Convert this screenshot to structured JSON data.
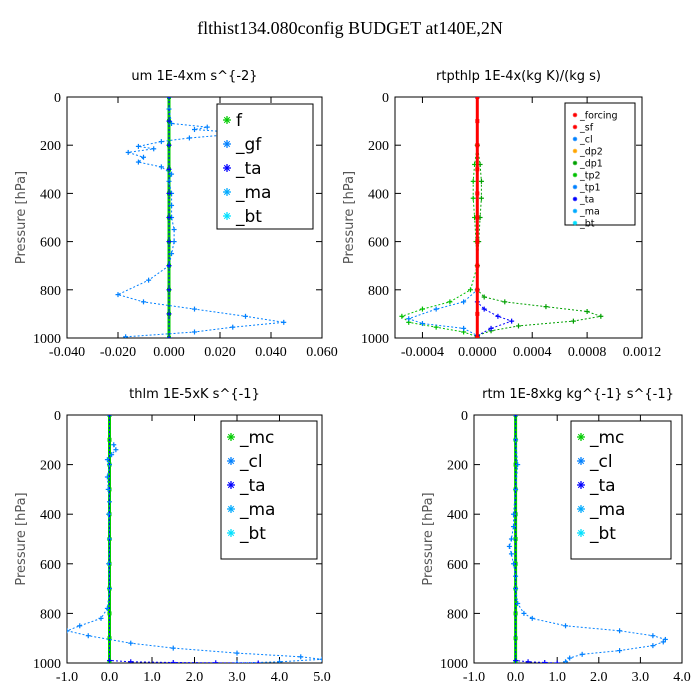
{
  "title": "flthist134.080config  BUDGET at140E,2N",
  "colors": {
    "forcing": "#ff0000",
    "sf": "#ff0000",
    "cl": "#0080ff",
    "dp2": "#ffa500",
    "dp1": "#00a000",
    "tp2": "#00c000",
    "tp1": "#0080ff",
    "ta": "#0000ff",
    "ma": "#00aaff",
    "bt": "#00e0ff",
    "mc": "#00cc00",
    "f": "#00cc00",
    "gf": "#0080ff"
  },
  "chart_data": [
    {
      "id": "um",
      "type": "line",
      "title": "um   1E-4xm s^{-2}",
      "ylabel": "Pressure [hPa]",
      "xlim": [
        -0.04,
        0.06
      ],
      "ylim": [
        1000,
        0
      ],
      "xticks": [
        "-0.040",
        "-0.020",
        "0.000",
        "0.020",
        "0.040",
        "0.060"
      ],
      "xtick_values": [
        -0.04,
        -0.02,
        0.0,
        0.02,
        0.04,
        0.06
      ],
      "yticks": [
        "0",
        "200",
        "400",
        "600",
        "800",
        "1000"
      ],
      "ytick_values": [
        0,
        200,
        400,
        600,
        800,
        1000
      ],
      "legend": [
        "f",
        "_gf",
        "_ta",
        "_ma",
        "_bt"
      ],
      "legend_colors": [
        "f",
        "gf",
        "ta",
        "ma",
        "bt"
      ],
      "series": [
        {
          "name": "f",
          "color": "f",
          "width": 3,
          "x": [
            0,
            0,
            0,
            0,
            0,
            0,
            0,
            0,
            0,
            0,
            0
          ],
          "y": [
            0,
            100,
            200,
            300,
            400,
            500,
            600,
            700,
            800,
            900,
            1000
          ]
        },
        {
          "name": "_gf",
          "color": "gf",
          "width": 1,
          "x": [
            0.0,
            0.0,
            0.001,
            0.015,
            0.01,
            0.03,
            0.008,
            -0.003,
            -0.012,
            -0.006,
            -0.016,
            -0.01,
            -0.012,
            -0.003,
            0.001,
            0.0,
            0.001,
            0.001,
            0.001,
            0.002,
            0.002,
            0.001,
            0.0,
            -0.008,
            -0.02,
            -0.01,
            0.01,
            0.03,
            0.045,
            0.025,
            0.01,
            -0.017
          ],
          "y": [
            0,
            50,
            110,
            125,
            135,
            150,
            170,
            185,
            205,
            215,
            230,
            250,
            270,
            290,
            320,
            350,
            400,
            450,
            500,
            550,
            600,
            650,
            700,
            760,
            820,
            850,
            880,
            910,
            935,
            955,
            975,
            995
          ]
        },
        {
          "name": "_ta",
          "color": "ta",
          "width": 1,
          "x": [
            0,
            0,
            0,
            0,
            0,
            0,
            0,
            0,
            0,
            0,
            0
          ],
          "y": [
            0,
            100,
            200,
            300,
            400,
            500,
            600,
            700,
            800,
            900,
            1000
          ]
        }
      ]
    },
    {
      "id": "rtpthlp",
      "type": "line",
      "title": "rtpthlp   1E-4x(kg K)/(kg s)",
      "ylabel": "Pressure [hPa]",
      "xlim": [
        -0.0006,
        0.0012
      ],
      "ylim": [
        1000,
        0
      ],
      "xticks": [
        "-0.0004",
        "0.0000",
        "0.0004",
        "0.0008",
        "0.0012"
      ],
      "xtick_values": [
        -0.0004,
        0.0,
        0.0004,
        0.0008,
        0.0012
      ],
      "yticks": [
        "0",
        "200",
        "400",
        "600",
        "800",
        "1000"
      ],
      "ytick_values": [
        0,
        200,
        400,
        600,
        800,
        1000
      ],
      "legend": [
        "_forcing",
        "_sf",
        "_cl",
        "_dp2",
        "_dp1",
        "_tp2",
        "_tp1",
        "_ta",
        "_ma",
        "_bt"
      ],
      "legend_colors": [
        "forcing",
        "sf",
        "cl",
        "dp2",
        "dp1",
        "tp2",
        "tp1",
        "ta",
        "ma",
        "bt"
      ],
      "series": [
        {
          "name": "_dp1",
          "color": "dp1",
          "width": 1,
          "x": [
            0.0,
            0.0,
            2e-05,
            3e-05,
            3e-05,
            2e-05,
            1e-05,
            0.0,
            0.0,
            5e-05,
            0.0002,
            0.0005,
            0.0008,
            0.0009,
            0.0007,
            0.0003,
            0.0001,
            0.0
          ],
          "y": [
            0,
            200,
            280,
            350,
            420,
            500,
            600,
            700,
            800,
            830,
            850,
            870,
            890,
            910,
            930,
            950,
            970,
            990
          ]
        },
        {
          "name": "_tp2",
          "color": "tp2",
          "width": 1,
          "x": [
            0.0,
            0.0,
            -2e-05,
            -3e-05,
            -3e-05,
            -2e-05,
            -1e-05,
            0.0,
            -5e-05,
            -0.0002,
            -0.0004,
            -0.00055,
            -0.0005,
            -0.0003,
            -0.0001,
            0.0
          ],
          "y": [
            0,
            200,
            280,
            350,
            420,
            500,
            600,
            700,
            800,
            850,
            880,
            910,
            935,
            955,
            975,
            995
          ]
        },
        {
          "name": "_tp1",
          "color": "tp1",
          "width": 1,
          "x": [
            0.0,
            0.0,
            -0.0001,
            -0.0003,
            -0.0005,
            -0.0004,
            -0.0001,
            0.0
          ],
          "y": [
            0,
            800,
            850,
            880,
            920,
            940,
            960,
            990
          ]
        },
        {
          "name": "_ta",
          "color": "ta",
          "width": 1,
          "x": [
            0.0,
            0.0,
            5e-05,
            0.00015,
            0.00025,
            0.0001,
            0.0
          ],
          "y": [
            0,
            850,
            880,
            910,
            930,
            960,
            990
          ]
        },
        {
          "name": "_forcing",
          "color": "forcing",
          "width": 3,
          "x": [
            0,
            0,
            0,
            0,
            0,
            0,
            0,
            0,
            0,
            0,
            0
          ],
          "y": [
            0,
            100,
            200,
            300,
            400,
            500,
            600,
            700,
            800,
            900,
            1000
          ]
        }
      ]
    },
    {
      "id": "thlm",
      "type": "line",
      "title": "thlm   1E-5xK s^{-1}",
      "ylabel": "Pressure [hPa]",
      "xlim": [
        -1.0,
        5.0
      ],
      "ylim": [
        1000,
        0
      ],
      "xticks": [
        "-1.0",
        "0.0",
        "1.0",
        "2.0",
        "3.0",
        "4.0",
        "5.0"
      ],
      "xtick_values": [
        -1.0,
        0.0,
        1.0,
        2.0,
        3.0,
        4.0,
        5.0
      ],
      "yticks": [
        "0",
        "200",
        "400",
        "600",
        "800",
        "1000"
      ],
      "ytick_values": [
        0,
        200,
        400,
        600,
        800,
        1000
      ],
      "legend": [
        "_mc",
        "_cl",
        "_ta",
        "_ma",
        "_bt"
      ],
      "legend_colors": [
        "mc",
        "cl",
        "ta",
        "ma",
        "bt"
      ],
      "series": [
        {
          "name": "_mc",
          "color": "mc",
          "width": 3,
          "x": [
            0,
            0,
            0,
            0,
            0,
            0,
            0,
            0,
            0,
            0,
            0
          ],
          "y": [
            0,
            100,
            200,
            300,
            400,
            500,
            600,
            700,
            800,
            900,
            1000
          ]
        },
        {
          "name": "_cl",
          "color": "cl",
          "width": 1,
          "x": [
            0.1,
            0.15,
            0.05,
            -0.05,
            0.0,
            -0.05,
            -0.03,
            0.0,
            -0.02,
            0.0,
            -0.02,
            0.0,
            -0.05,
            -0.2,
            -0.7,
            -1.0,
            -0.5,
            0.5,
            1.5,
            3.0,
            4.5,
            5.0,
            4.0,
            3.0
          ],
          "y": [
            120,
            140,
            160,
            180,
            200,
            250,
            300,
            350,
            400,
            500,
            600,
            700,
            780,
            820,
            850,
            870,
            890,
            920,
            940,
            960,
            975,
            985,
            995,
            1000
          ]
        },
        {
          "name": "_ta",
          "color": "ta",
          "width": 1,
          "x": [
            0,
            0,
            0.5,
            1.5,
            2.5,
            3.5
          ],
          "y": [
            0,
            990,
            995,
            998,
            999,
            1000
          ]
        }
      ]
    },
    {
      "id": "rtm",
      "type": "line",
      "title": "rtm   1E-8xkg kg^{-1} s^{-1}",
      "ylabel": "Pressure [hPa]",
      "xlim": [
        -1.0,
        4.0
      ],
      "ylim": [
        1000,
        0
      ],
      "xticks": [
        "-1.0",
        "0.0",
        "1.0",
        "2.0",
        "3.0",
        "4.0"
      ],
      "xtick_values": [
        -1.0,
        0.0,
        1.0,
        2.0,
        3.0,
        4.0
      ],
      "yticks": [
        "0",
        "200",
        "400",
        "600",
        "800",
        "1000"
      ],
      "ytick_values": [
        0,
        200,
        400,
        600,
        800,
        1000
      ],
      "legend": [
        "_mc",
        "_cl",
        "_ta",
        "_ma",
        "_bt"
      ],
      "legend_colors": [
        "mc",
        "cl",
        "ta",
        "ma",
        "bt"
      ],
      "series": [
        {
          "name": "_mc",
          "color": "mc",
          "width": 3,
          "x": [
            0,
            0,
            0,
            0,
            0,
            0,
            0,
            0,
            0,
            0,
            0
          ],
          "y": [
            0,
            100,
            200,
            300,
            400,
            500,
            600,
            700,
            800,
            900,
            1000
          ]
        },
        {
          "name": "_cl",
          "color": "cl",
          "width": 1,
          "x": [
            0.0,
            0.05,
            0.0,
            -0.05,
            -0.05,
            -0.1,
            -0.15,
            -0.1,
            -0.05,
            0.0,
            0.0,
            0.05,
            0.2,
            0.4,
            1.2,
            2.5,
            3.3,
            3.6,
            3.55,
            3.3,
            2.5,
            1.6,
            1.3,
            1.2
          ],
          "y": [
            100,
            200,
            300,
            400,
            450,
            500,
            530,
            560,
            600,
            650,
            700,
            760,
            800,
            820,
            850,
            870,
            890,
            905,
            915,
            930,
            950,
            965,
            980,
            995
          ]
        },
        {
          "name": "_ta",
          "color": "ta",
          "width": 1,
          "x": [
            0,
            0,
            0.3,
            0.7,
            1.0
          ],
          "y": [
            0,
            990,
            995,
            998,
            1000
          ]
        }
      ]
    }
  ]
}
